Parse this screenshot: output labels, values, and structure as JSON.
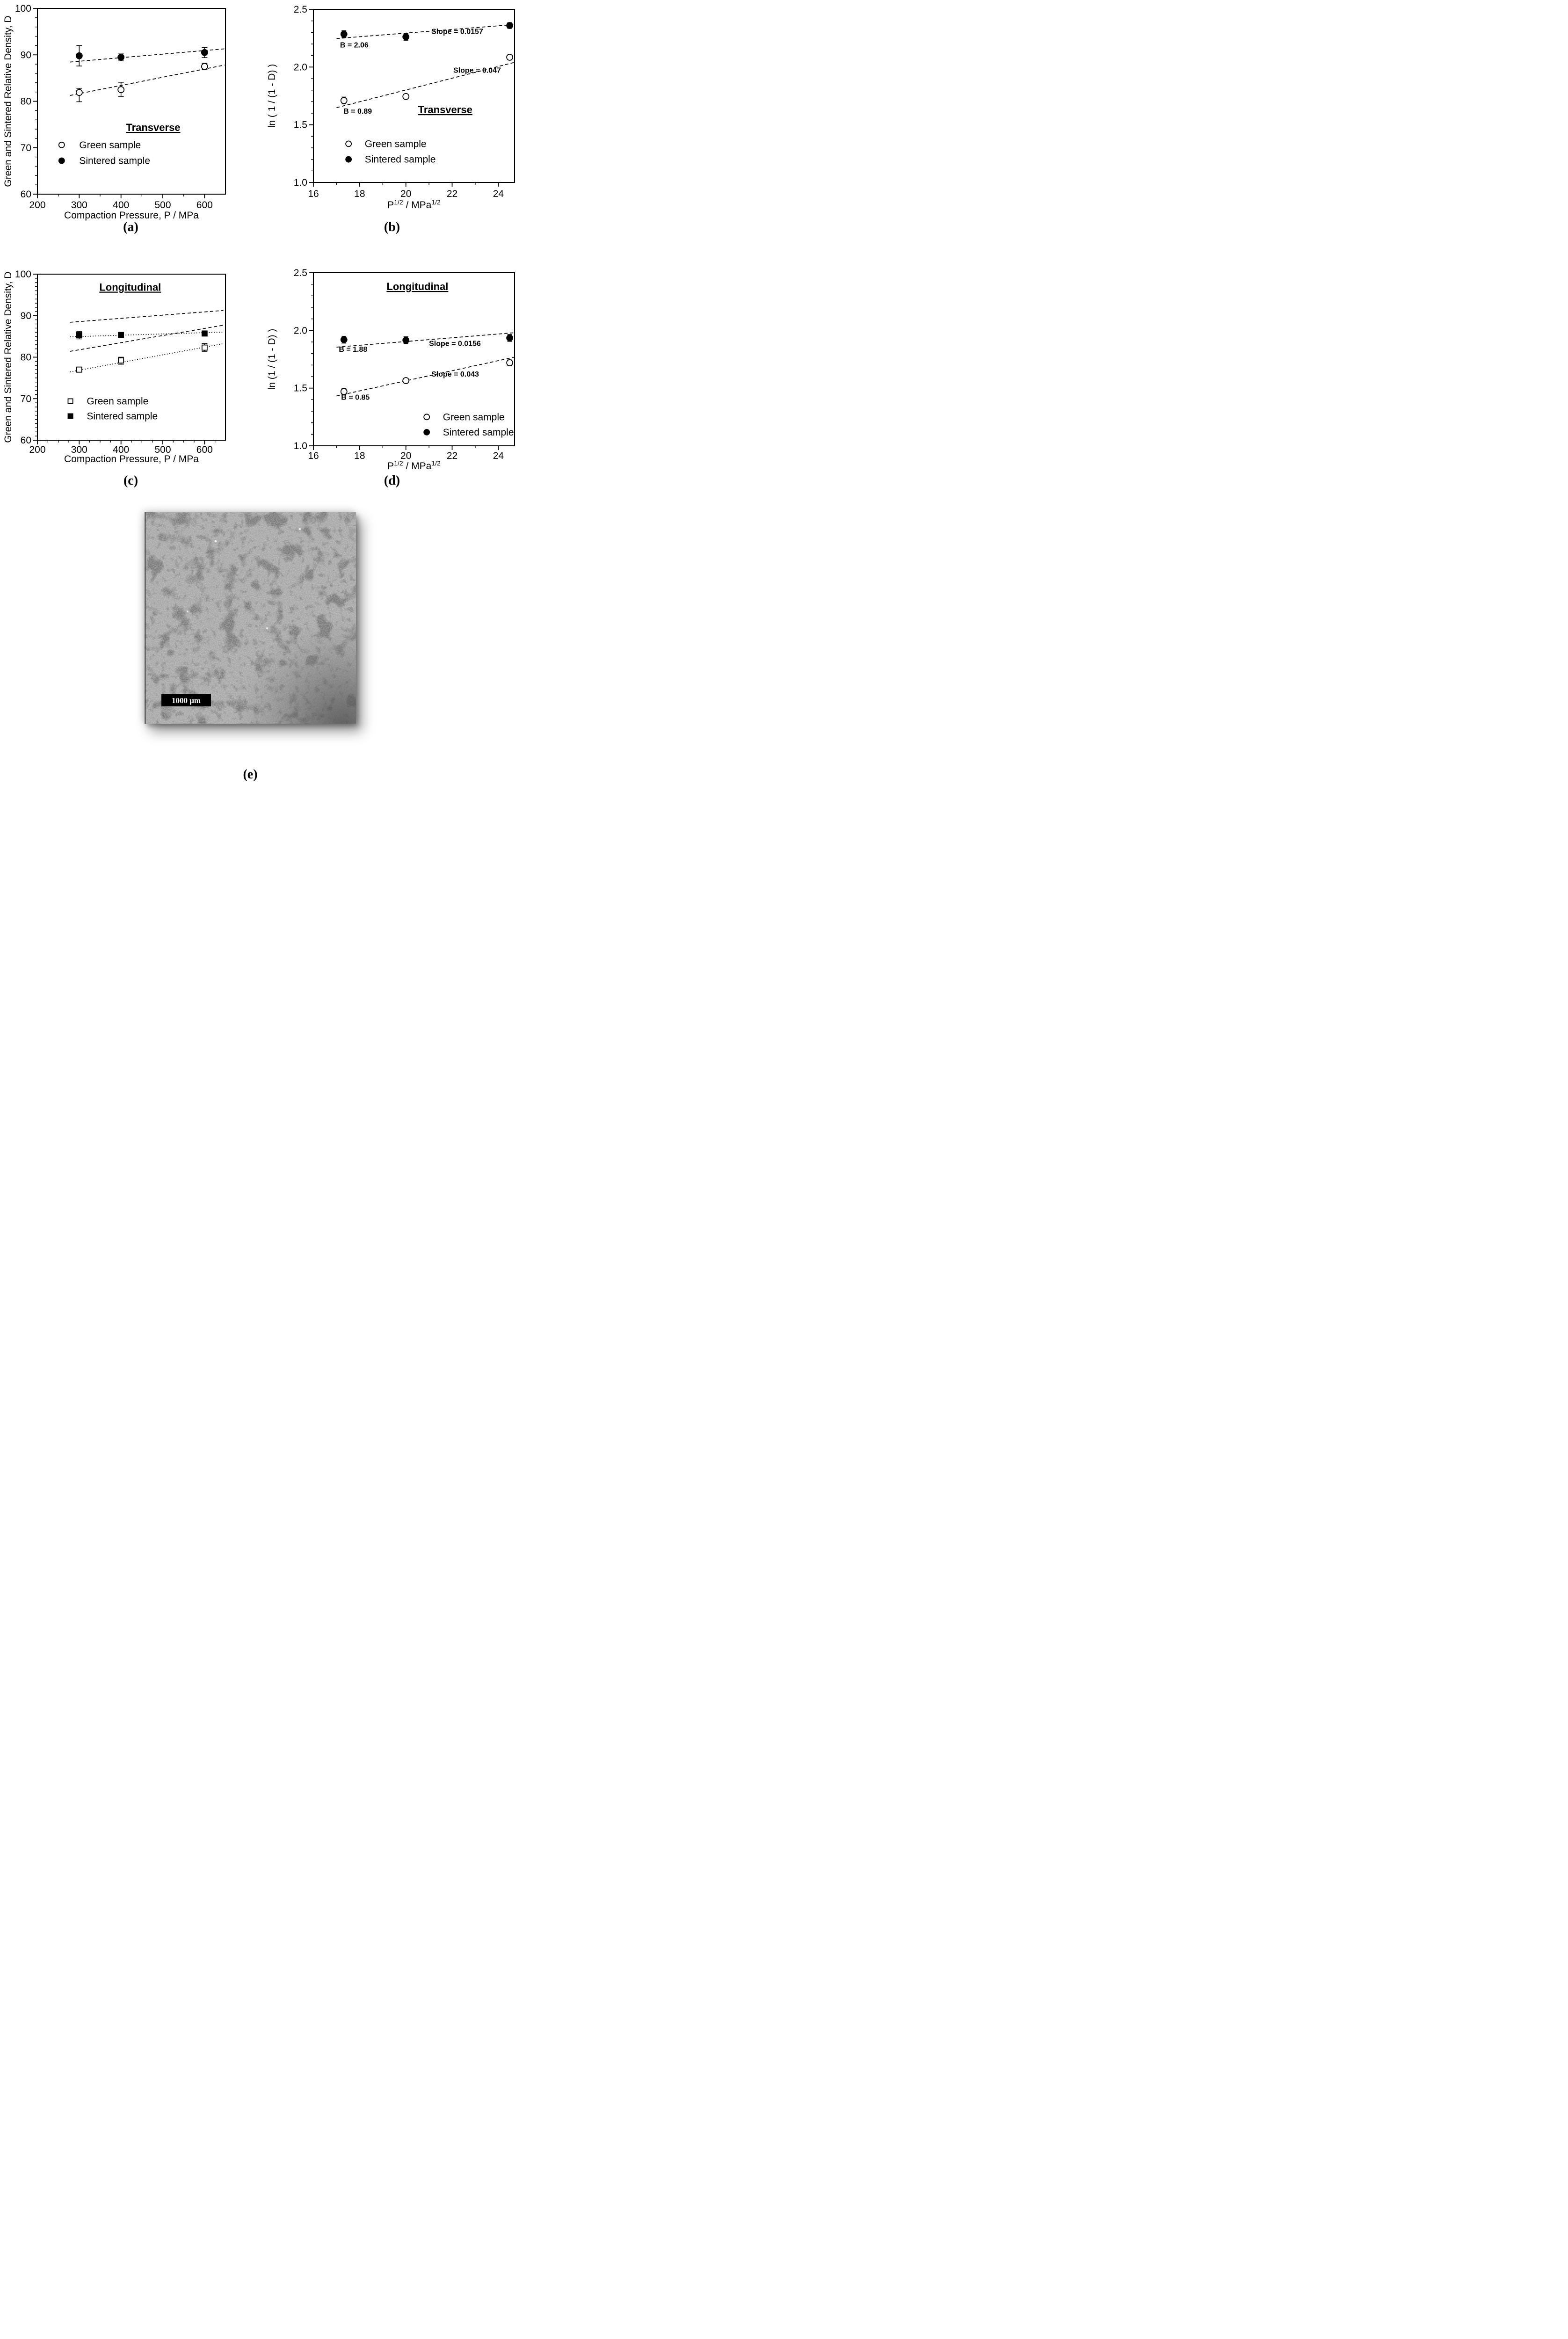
{
  "captions": {
    "a": "(a)",
    "b": "(b)",
    "c": "(c)",
    "d": "(d)",
    "e": "(e)"
  },
  "micrograph": {
    "scale_bar_label": "1000 μm"
  },
  "colors": {
    "foreground": "#000000",
    "background": "#ffffff",
    "micrograph_base": "#a6a6a6"
  },
  "chart_data": [
    {
      "id": "a",
      "type": "scatter",
      "xlabel": "Compaction Pressure, P  /  MPa",
      "ylabel": "Green and Sintered Relative Density, D",
      "xlim": [
        200,
        650
      ],
      "ylim": [
        60,
        100
      ],
      "xticks": [
        200,
        300,
        400,
        500,
        600
      ],
      "yticks": [
        60,
        70,
        80,
        90,
        100
      ],
      "xminor": 50,
      "yminor": 2,
      "grid": false,
      "series": [
        {
          "name": "Green sample",
          "marker": "circle-open",
          "points": [
            {
              "x": 300,
              "y": 81.9,
              "el": 2.0,
              "eu": 0.9
            },
            {
              "x": 400,
              "y": 82.5,
              "el": 1.5,
              "eu": 1.6
            },
            {
              "x": 600,
              "y": 87.5,
              "el": 0.7,
              "eu": 0.7
            }
          ]
        },
        {
          "name": "Sintered sample",
          "marker": "circle-filled",
          "points": [
            {
              "x": 300,
              "y": 89.8,
              "el": 2.2,
              "eu": 2.2
            },
            {
              "x": 400,
              "y": 89.5,
              "el": 0.8,
              "eu": 0.7
            },
            {
              "x": 600,
              "y": 90.5,
              "el": 1.1,
              "eu": 1.1
            }
          ]
        }
      ],
      "lines": [
        {
          "style": "dashed",
          "x1": 278,
          "y1": 88.45,
          "x2": 648,
          "y2": 91.3
        },
        {
          "style": "dashed",
          "x1": 278,
          "y1": 81.25,
          "x2": 648,
          "y2": 87.8
        }
      ],
      "annotations": [
        {
          "text": "Transverse",
          "x": 477,
          "y": 73.6,
          "size": 22,
          "bold": true,
          "underline": true,
          "anchor": "middle"
        }
      ],
      "legend": {
        "x": 258,
        "label_x": 300,
        "rows": [
          70.6,
          67.2
        ],
        "order": [
          "Green sample",
          "Sintered sample"
        ]
      }
    },
    {
      "id": "b",
      "type": "scatter",
      "xlabel": "P^{1/2}  /  MPa^{1/2}",
      "ylabel": "ln ( 1 / (1 - D) )",
      "xlim": [
        16,
        24.7
      ],
      "ylim": [
        1.0,
        2.5
      ],
      "xticks": [
        16,
        18,
        20,
        22,
        24
      ],
      "yticks": [
        1.0,
        1.5,
        2.0,
        2.5
      ],
      "ytick_decimals": 1,
      "xminor": 1,
      "yminor": 0.1,
      "grid": false,
      "series": [
        {
          "name": "Green sample",
          "marker": "circle-open",
          "points": [
            {
              "x": 17.32,
              "y": 1.71,
              "el": 0.03,
              "eu": 0.03
            },
            {
              "x": 20,
              "y": 1.745,
              "el": 0.02,
              "eu": 0.02
            },
            {
              "x": 24.49,
              "y": 2.085,
              "el": 0.02,
              "eu": 0.02
            }
          ]
        },
        {
          "name": "Sintered sample",
          "marker": "circle-filled",
          "points": [
            {
              "x": 17.32,
              "y": 2.285,
              "el": 0.03,
              "eu": 0.03
            },
            {
              "x": 20,
              "y": 2.262,
              "el": 0.03,
              "eu": 0.03
            },
            {
              "x": 24.49,
              "y": 2.36,
              "el": 0.025,
              "eu": 0.025
            }
          ]
        }
      ],
      "lines": [
        {
          "style": "dashed",
          "x1": 17.0,
          "y1": 2.247,
          "x2": 24.68,
          "y2": 2.368
        },
        {
          "style": "dashed",
          "x1": 17.0,
          "y1": 1.648,
          "x2": 24.68,
          "y2": 2.04
        }
      ],
      "annotations": [
        {
          "text": "B = 2.06",
          "x": 17.15,
          "y": 2.17,
          "size": 16,
          "bold": true
        },
        {
          "text": "Slope = 0.0157",
          "x": 21.1,
          "y": 2.287,
          "size": 16,
          "bold": true
        },
        {
          "text": "B = 0.89",
          "x": 17.3,
          "y": 1.595,
          "size": 16,
          "bold": true
        },
        {
          "text": "Slope = 0.047",
          "x": 22.05,
          "y": 1.95,
          "size": 16,
          "bold": true
        },
        {
          "text": "Transverse",
          "x": 21.7,
          "y": 1.6,
          "size": 22,
          "bold": true,
          "underline": true,
          "anchor": "middle"
        }
      ],
      "legend": {
        "x": 17.52,
        "label_x": 18.22,
        "rows": [
          1.335,
          1.2
        ],
        "order": [
          "Green sample",
          "Sintered sample"
        ]
      }
    },
    {
      "id": "c",
      "type": "scatter",
      "xlabel": "Compaction Pressure, P  /  MPa",
      "ylabel": "Green and Sintered Relative Density, D",
      "xlim": [
        200,
        650
      ],
      "ylim": [
        60,
        100
      ],
      "xticks": [
        200,
        300,
        400,
        500,
        600
      ],
      "yticks": [
        60,
        70,
        80,
        90,
        100
      ],
      "xminor": 25,
      "yminor": 1,
      "grid": false,
      "series": [
        {
          "name": "Green sample",
          "marker": "square-open",
          "points": [
            {
              "x": 300,
              "y": 77.0,
              "el": 0.5,
              "eu": 0.5
            },
            {
              "x": 400,
              "y": 79.2,
              "el": 0.9,
              "eu": 0.8
            },
            {
              "x": 600,
              "y": 82.3,
              "el": 0.9,
              "eu": 1.0
            }
          ]
        },
        {
          "name": "Sintered sample",
          "marker": "square-filled",
          "points": [
            {
              "x": 300,
              "y": 85.3,
              "el": 0.9,
              "eu": 0.9
            },
            {
              "x": 400,
              "y": 85.35,
              "el": 0.3,
              "eu": 0.3
            },
            {
              "x": 600,
              "y": 85.7,
              "el": 0.3,
              "eu": 0.3
            }
          ]
        }
      ],
      "lines": [
        {
          "style": "dashed",
          "x1": 278,
          "y1": 88.4,
          "x2": 645,
          "y2": 91.25
        },
        {
          "style": "dashed",
          "x1": 278,
          "y1": 81.4,
          "x2": 645,
          "y2": 87.7
        },
        {
          "style": "dotted",
          "x1": 278,
          "y1": 84.9,
          "x2": 645,
          "y2": 86.05
        },
        {
          "style": "dotted",
          "x1": 278,
          "y1": 76.45,
          "x2": 645,
          "y2": 83.25
        }
      ],
      "annotations": [
        {
          "text": "Longitudinal",
          "x": 422,
          "y": 96.0,
          "size": 22,
          "bold": true,
          "underline": true,
          "anchor": "middle"
        }
      ],
      "legend": {
        "x": 279,
        "label_x": 318,
        "rows": [
          69.4,
          65.8
        ],
        "order": [
          "Green sample",
          "Sintered sample"
        ]
      }
    },
    {
      "id": "d",
      "type": "scatter",
      "xlabel": "P^{1/2}  /  MPa^{1/2}",
      "ylabel": "ln (1 / (1 - D) )",
      "xlim": [
        16,
        24.7
      ],
      "ylim": [
        1.0,
        2.5
      ],
      "xticks": [
        16,
        18,
        20,
        22,
        24
      ],
      "yticks": [
        1.0,
        1.5,
        2.0,
        2.5
      ],
      "ytick_decimals": 1,
      "xminor": 1,
      "yminor": 0.1,
      "grid": false,
      "series": [
        {
          "name": "Green sample",
          "marker": "circle-open",
          "points": [
            {
              "x": 17.32,
              "y": 1.47,
              "el": 0.025,
              "eu": 0.025
            },
            {
              "x": 20,
              "y": 1.565,
              "el": 0.02,
              "eu": 0.02
            },
            {
              "x": 24.49,
              "y": 1.72,
              "el": 0.025,
              "eu": 0.025
            }
          ]
        },
        {
          "name": "Sintered sample",
          "marker": "circle-filled",
          "points": [
            {
              "x": 17.32,
              "y": 1.92,
              "el": 0.03,
              "eu": 0.03
            },
            {
              "x": 20,
              "y": 1.915,
              "el": 0.03,
              "eu": 0.03
            },
            {
              "x": 24.49,
              "y": 1.935,
              "el": 0.03,
              "eu": 0.03
            }
          ]
        }
      ],
      "lines": [
        {
          "style": "dashed",
          "x1": 17.0,
          "y1": 1.855,
          "x2": 24.68,
          "y2": 1.98
        },
        {
          "style": "dashed",
          "x1": 17.0,
          "y1": 1.432,
          "x2": 24.68,
          "y2": 1.768
        }
      ],
      "annotations": [
        {
          "text": "B = 1.88",
          "x": 17.1,
          "y": 1.815,
          "size": 16,
          "bold": true
        },
        {
          "text": "Slope = 0.0156",
          "x": 21.0,
          "y": 1.865,
          "size": 16,
          "bold": true
        },
        {
          "text": "B = 0.85",
          "x": 17.2,
          "y": 1.4,
          "size": 16,
          "bold": true
        },
        {
          "text": "Slope = 0.043",
          "x": 21.1,
          "y": 1.6,
          "size": 16,
          "bold": true
        },
        {
          "text": "Longitudinal",
          "x": 20.5,
          "y": 2.35,
          "size": 22,
          "bold": true,
          "underline": true,
          "anchor": "middle"
        }
      ],
      "legend": {
        "x": 20.9,
        "label_x": 21.6,
        "rows": [
          1.25,
          1.118
        ],
        "order": [
          "Green sample",
          "Sintered sample"
        ]
      }
    }
  ]
}
